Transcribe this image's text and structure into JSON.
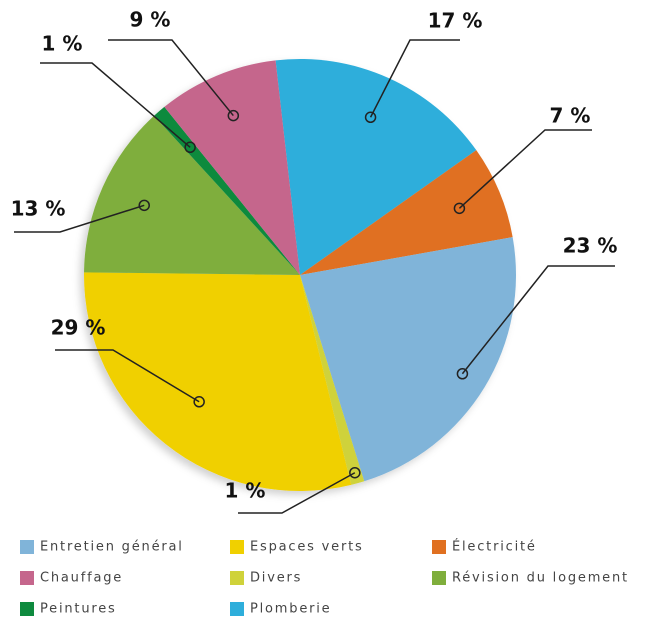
{
  "chart_data": {
    "type": "pie",
    "categories": [
      "Plomberie",
      "Électricité",
      "Entretien général",
      "Divers",
      "Espaces verts",
      "Révision du logement",
      "Peintures",
      "Chauffage"
    ],
    "values": [
      17,
      7,
      23,
      1,
      29,
      13,
      1,
      9
    ],
    "value_labels": [
      "17 %",
      "7 %",
      "23 %",
      "1 %",
      "29 %",
      "13 %",
      "1 %",
      "9 %"
    ],
    "colors": [
      "#2eaedb",
      "#e07020",
      "#80b4d9",
      "#cfd23a",
      "#f0d000",
      "#7fae3c",
      "#0e8a3e",
      "#c5668c"
    ],
    "legend": "bottom"
  }
}
